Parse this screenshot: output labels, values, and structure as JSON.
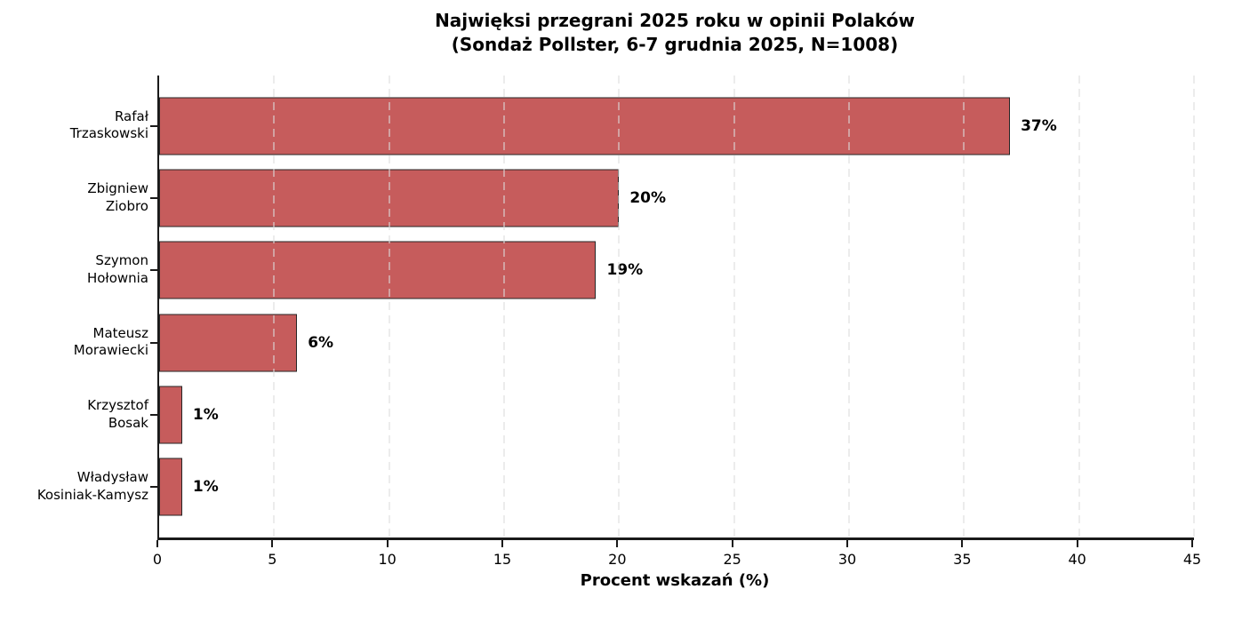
{
  "chart_data": {
    "type": "bar",
    "orientation": "horizontal",
    "title": "Najwięksi przegrani 2025 roku w opinii Polaków",
    "subtitle": "(Sondaż Pollster, 6-7 grudnia 2025, N=1008)",
    "categories": [
      "Rafał\nTrzaskowski",
      "Zbigniew\nZiobro",
      "Szymon\nHołownia",
      "Mateusz\nMorawiecki",
      "Krzysztof\nBosak",
      "Władysław\nKosiniak-Kamysz"
    ],
    "values": [
      37,
      20,
      19,
      6,
      1,
      1
    ],
    "value_labels": [
      "37%",
      "20%",
      "19%",
      "6%",
      "1%",
      "1%"
    ],
    "xlabel": "Procent wskazań (%)",
    "ylabel": "",
    "xlim": [
      0,
      45
    ],
    "xticks": [
      0,
      5,
      10,
      15,
      20,
      25,
      30,
      35,
      40,
      45
    ],
    "grid": "vertical-dashed",
    "legend": "none",
    "colors": {
      "bar_fill": "#c65c5c",
      "bar_edge": "#262626",
      "axis": "#1a1a1a",
      "gridline": "#dcdcdc",
      "text": "#000000",
      "background": "#ffffff"
    }
  }
}
